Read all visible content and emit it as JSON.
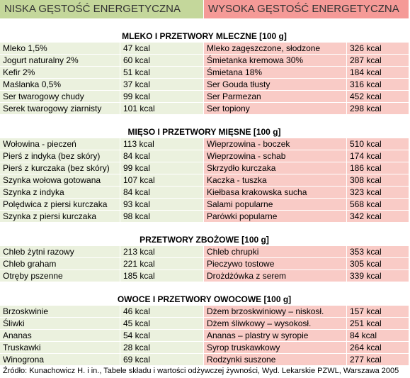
{
  "header": {
    "left": "NISKA GĘSTOŚĆ ENERGETYCZNA",
    "right": "WYSOKA GĘSTOŚĆ ENERGETYCZNA"
  },
  "sections": [
    {
      "title": "MLEKO I PRZETWORY MLECZNE [100 g]",
      "rows": [
        [
          "Mleko 1,5%",
          "47 kcal",
          "Mleko zagęszczone, słodzone",
          "326 kcal"
        ],
        [
          "Jogurt naturalny 2%",
          "60 kcal",
          "Śmietanka kremowa 30%",
          "287 kcal"
        ],
        [
          "Kefir 2%",
          "51 kcal",
          "Śmietana 18%",
          "184 kcal"
        ],
        [
          "Maślanka  0,5%",
          "37 kcal",
          "Ser Gouda tłusty",
          "316 kcal"
        ],
        [
          "Ser twarogowy chudy",
          "99 kcal",
          "Ser Parmezan",
          "452 kcal"
        ],
        [
          "Serek twarogowy ziarnisty",
          "101 kcal",
          "Ser topiony",
          "298 kcal"
        ]
      ]
    },
    {
      "title": "MIĘSO I PRZETWORY MIĘSNE [100 g]",
      "rows": [
        [
          "Wołowina - pieczeń",
          "113 kcal",
          "Wieprzowina - boczek",
          "510 kcal"
        ],
        [
          "Pierś z indyka  (bez skóry)",
          "84 kcal",
          "Wieprzowina - schab",
          "174 kcal"
        ],
        [
          "Pierś z kurczaka (bez skóry)",
          "99 kcal",
          "Skrzydło kurczaka",
          "186 kcal"
        ],
        [
          "Szynka wołowa gotowana",
          "107 kcal",
          "Kaczka - tuszka",
          "308 kcal"
        ],
        [
          "Szynka z indyka",
          "84 kcal",
          "Kiełbasa krakowska sucha",
          "323 kcal"
        ],
        [
          "Polędwica z piersi kurczaka",
          "93 kcal",
          "Salami popularne",
          "568 kcal"
        ],
        [
          "Szynka z piersi kurczaka",
          "98 kcal",
          "Parówki popularne",
          "342 kcal"
        ]
      ]
    },
    {
      "title": "PRZETWORY ZBOŻOWE [100 g]",
      "rows": [
        [
          "Chleb żytni razowy",
          "213 kcal",
          "Chleb chrupki",
          "353 kcal"
        ],
        [
          "Chleb graham",
          "221 kcal",
          "Pieczywo tostowe",
          "305 kcal"
        ],
        [
          "Otręby pszenne",
          "185 kcal",
          "Drożdżówka z serem",
          "339 kcal"
        ]
      ]
    },
    {
      "title": "OWOCE I PRZETWORY OWOCOWE [100 g]",
      "rows": [
        [
          "Brzoskwinie",
          "46 kcal",
          "Dżem brzoskwiniowy – niskosł.",
          "157 kcal"
        ],
        [
          "Śliwki",
          "45 kcal",
          "Dżem śliwkowy – wysokosł.",
          "251 kcal"
        ],
        [
          "Ananas",
          "54 kcal",
          "Ananas – plastry w syropie",
          "84 kcal"
        ],
        [
          "Truskawki",
          "28 kcal",
          "Syrop truskawkowy",
          "264 kcal"
        ],
        [
          "Winogrona",
          "69 kcal",
          "Rodzynki suszone",
          "277 kcal"
        ]
      ]
    }
  ],
  "source": "Źródło: Kunachowicz H. i in., Tabele składu i wartości odżywczej żywności, Wyd. Lekarskie PZWL, Warszawa 2005"
}
